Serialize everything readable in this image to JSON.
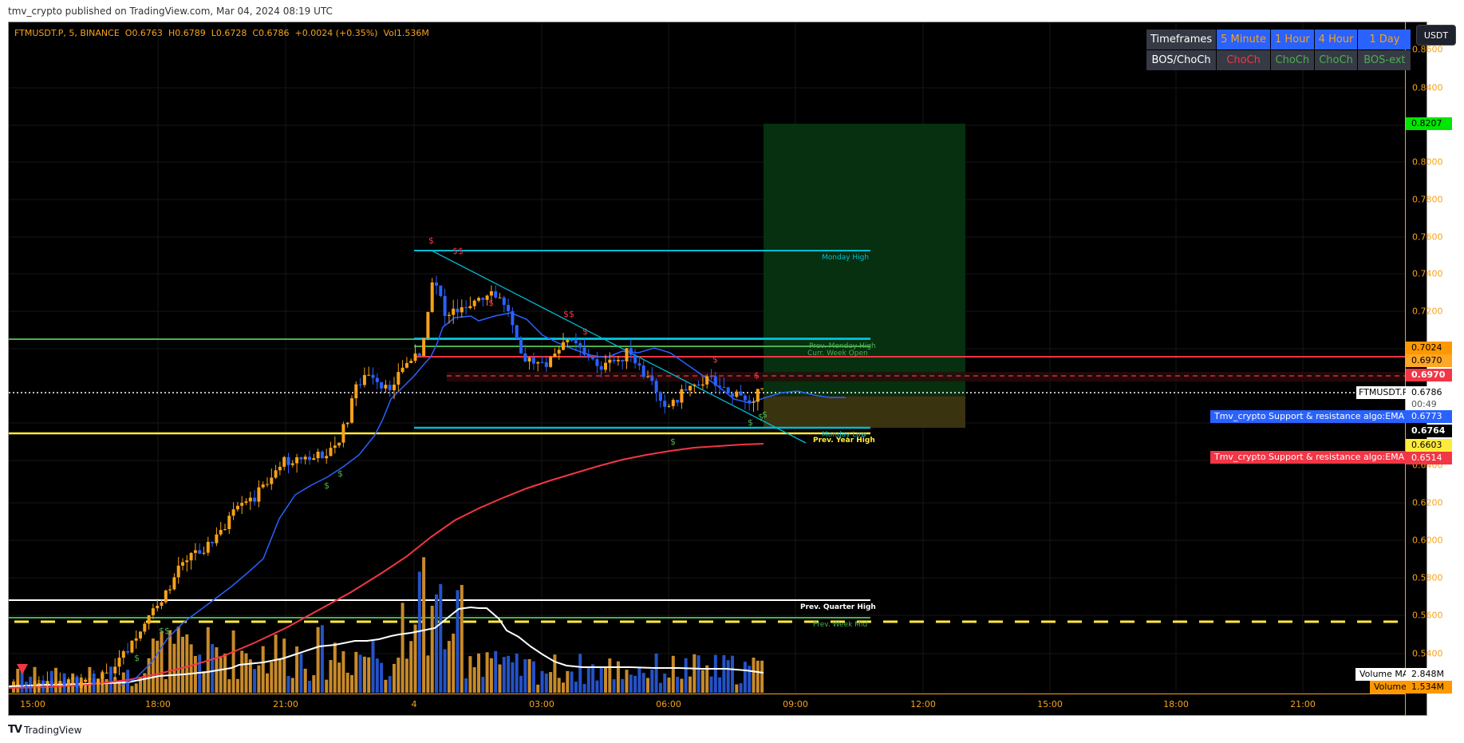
{
  "publish_line": "tmv_crypto published on TradingView.com, Mar 04, 2024 08:19 UTC",
  "legend": {
    "symbol": "FTMUSDT.P, 5, BINANCE",
    "open": "O0.6763",
    "high": "H0.6789",
    "low": "L0.6728",
    "close": "C0.6786",
    "change": "+0.0024 (+0.35%)",
    "volume": "Vol1.536M"
  },
  "timeframe_table": {
    "header_label": "Timeframes",
    "row_label": "BOS/ChoCh",
    "columns": [
      {
        "timeframe": "5 Minute",
        "status": "ChoCh",
        "status_color": "#f23645"
      },
      {
        "timeframe": "1 Hour",
        "status": "ChoCh",
        "status_color": "#4caf50"
      },
      {
        "timeframe": "4 Hour",
        "status": "ChoCh",
        "status_color": "#4caf50"
      },
      {
        "timeframe": "1 Day",
        "status": "BOS-ext",
        "status_color": "#4caf50"
      }
    ]
  },
  "currency_button": "USDT",
  "price_axis": {
    "ticks": [
      "0.8600",
      "0.8400",
      "0.8000",
      "0.7800",
      "0.7600",
      "0.7400",
      "0.7200",
      "0.6400",
      "0.6200",
      "0.6000",
      "0.5800",
      "0.5600",
      "0.5400"
    ],
    "tags": [
      {
        "value": "0.8207",
        "bg": "#00e600",
        "fg": "#000000"
      },
      {
        "value": "0.7024",
        "bg": "#ff9800",
        "fg": "#000000"
      },
      {
        "value": "0.6970",
        "bg": "#ffa726",
        "fg": "#000000"
      },
      {
        "value": "0.6970",
        "bg": "#f23645",
        "fg": "#ffffff"
      },
      {
        "value": "0.6786",
        "bg": "#ffffff",
        "fg": "#000000"
      },
      {
        "value": "00:49",
        "bg": "#ffffff",
        "fg": "#555555"
      },
      {
        "value": "0.6773",
        "bg": "#2962ff",
        "fg": "#ffffff"
      },
      {
        "value": "0.6764",
        "bg": "#000000",
        "fg": "#ffffff"
      },
      {
        "value": "0.6603",
        "bg": "#ffeb3b",
        "fg": "#000000"
      },
      {
        "value": "0.6514",
        "bg": "#f23645",
        "fg": "#ffffff"
      },
      {
        "value": "2.848M",
        "bg": "#ffffff",
        "fg": "#000000"
      },
      {
        "value": "1.534M",
        "bg": "#ff9800",
        "fg": "#000000"
      }
    ]
  },
  "symbol_tag": "FTMUSDT.P",
  "indicator_tags": {
    "ema1": "Tmv_crypto Support & resistance algo:EMA 1",
    "ema2": "Tmv_crypto Support & resistance algo:EMA 2",
    "volume_ma": "Volume MA",
    "volume": "Volume"
  },
  "time_axis": [
    "15:00",
    "18:00",
    "21:00",
    "4",
    "03:00",
    "06:00",
    "09:00",
    "12:00",
    "15:00",
    "18:00",
    "21:00"
  ],
  "level_labels": {
    "monday_high": "Monday High",
    "prev_monday_high": "Prev. Monday High",
    "prev_week_high": "Prev. Week High",
    "curr_week_open": "Curr. Week Open",
    "monday_low": "Monday Low",
    "prev_year_high": "Prev. Year High",
    "prev_quarter_high": "Prev. Quarter High",
    "prev_week_mid": "Prev. Week Mid"
  },
  "liquidity_marks": {
    "single": "$",
    "double": "$$"
  },
  "colors": {
    "up_candle": "#f7a21b",
    "down_candle": "#2962ff",
    "ema1": "#2962ff",
    "ema2": "#f23645",
    "volume_ma": "#ffffff",
    "long_target_zone": "#06300f",
    "long_stop_zone": "#3a3310",
    "accent_axis": "#f7a21b"
  },
  "branding": "TradingView"
}
